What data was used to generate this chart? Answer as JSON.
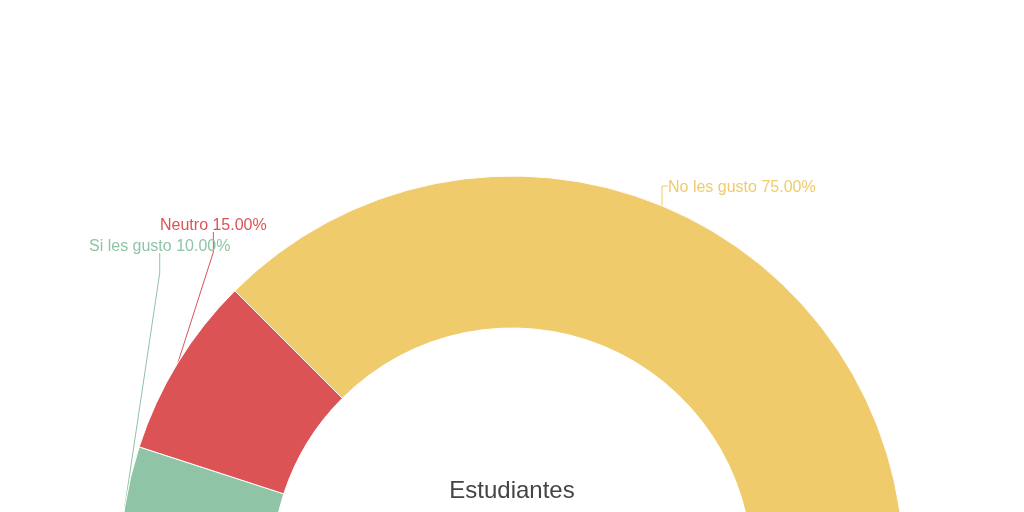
{
  "chart_data": {
    "type": "donut",
    "title": "Estudiantes",
    "categories": [
      "Si les gusto",
      "Neutro",
      "No les gusto"
    ],
    "values": [
      10,
      15,
      75
    ],
    "value_labels": [
      "10.00%",
      "15.00%",
      "75.00%"
    ],
    "colors": [
      "#8fc4a6",
      "#dc5356",
      "#efcb6b"
    ],
    "legend": false
  }
}
